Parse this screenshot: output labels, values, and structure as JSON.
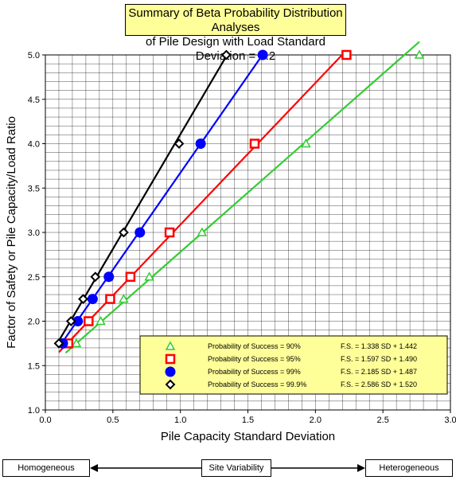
{
  "chart_data": {
    "type": "scatter",
    "title": [
      "Summary of Beta Probability Distribution Analyses",
      "of Pile Design with Load Standard Deviation = 0.2"
    ],
    "xlabel": "Pile Capacity Standard Deviation",
    "ylabel": "Factor of Safety  or  Pile Capacity/Load Ratio",
    "xlim": [
      0.0,
      3.0
    ],
    "ylim": [
      1.0,
      5.0
    ],
    "xticks": [
      "0.0",
      "0.5",
      "1.0",
      "1.5",
      "2.0",
      "2.5",
      "3.0"
    ],
    "yticks": [
      "1.0",
      "1.5",
      "2.0",
      "2.5",
      "3.0",
      "3.5",
      "4.0",
      "4.5",
      "5.0"
    ],
    "grid": true,
    "legend_position": "bottom-right",
    "series": [
      {
        "name": "Probability of Success = 90%",
        "equation": "F.S. = 1.338 SD + 1.442",
        "slope": 1.338,
        "intercept": 1.442,
        "marker": "triangle",
        "color": "#33cc33",
        "line_x": [
          0.15,
          2.77
        ],
        "points": [
          [
            0.23,
            1.75
          ],
          [
            0.41,
            2.0
          ],
          [
            0.58,
            2.25
          ],
          [
            0.77,
            2.5
          ],
          [
            1.16,
            3.0
          ],
          [
            1.93,
            4.0
          ],
          [
            2.77,
            5.0
          ]
        ]
      },
      {
        "name": "Probability of Success = 95%",
        "equation": "F.S. = 1.597 SD + 1.490",
        "slope": 1.597,
        "intercept": 1.49,
        "marker": "square",
        "color": "#ff0000",
        "line_x": [
          0.1,
          2.23
        ],
        "points": [
          [
            0.17,
            1.75
          ],
          [
            0.32,
            2.0
          ],
          [
            0.48,
            2.25
          ],
          [
            0.63,
            2.5
          ],
          [
            0.92,
            3.0
          ],
          [
            1.55,
            4.0
          ],
          [
            2.23,
            5.0
          ]
        ]
      },
      {
        "name": "Probability of Success = 99%",
        "equation": "F.S. = 2.185 SD + 1.487",
        "slope": 2.185,
        "intercept": 1.487,
        "marker": "circle",
        "color": "#0000ff",
        "line_x": [
          0.11,
          1.61
        ],
        "points": [
          [
            0.13,
            1.75
          ],
          [
            0.24,
            2.0
          ],
          [
            0.35,
            2.25
          ],
          [
            0.47,
            2.5
          ],
          [
            0.7,
            3.0
          ],
          [
            1.15,
            4.0
          ],
          [
            1.61,
            5.0
          ]
        ]
      },
      {
        "name": "Probability of Success = 99.9%",
        "equation": "F.S. = 2.586 SD + 1.520",
        "slope": 2.586,
        "intercept": 1.52,
        "marker": "diamond",
        "color": "#000000",
        "line_x": [
          0.08,
          1.34
        ],
        "points": [
          [
            0.1,
            1.75
          ],
          [
            0.19,
            2.0
          ],
          [
            0.28,
            2.25
          ],
          [
            0.37,
            2.5
          ],
          [
            0.58,
            3.0
          ],
          [
            0.99,
            4.0
          ],
          [
            1.34,
            5.0
          ]
        ]
      }
    ]
  },
  "variability": {
    "left": "Homogeneous",
    "middle": "Site Variability",
    "right": "Heterogeneous"
  },
  "colors": {
    "title_bg": "#ffff99",
    "legend_bg": "#ffff99"
  }
}
